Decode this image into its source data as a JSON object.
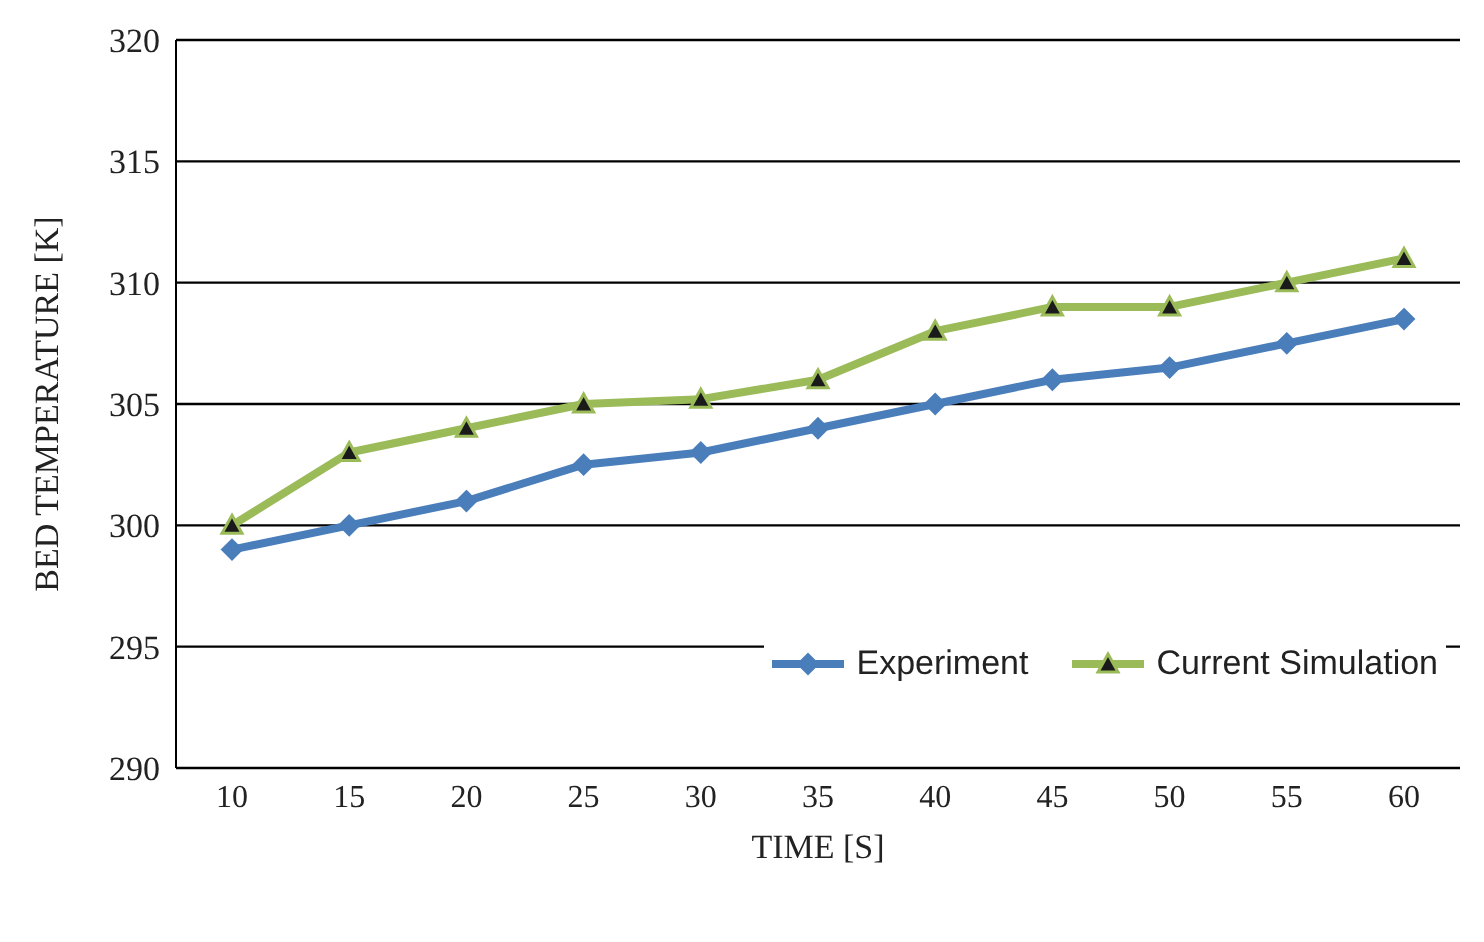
{
  "chart_data": {
    "type": "line",
    "xlabel": "TIME [S]",
    "ylabel": "BED TEMPERATURE [K]",
    "categories": [
      "10",
      "15",
      "20",
      "25",
      "30",
      "35",
      "40",
      "45",
      "50",
      "55",
      "60"
    ],
    "series": [
      {
        "name": "Experiment",
        "color": "#4a7ebb",
        "marker": "diamond",
        "values": [
          299,
          300,
          301,
          302.5,
          303,
          304,
          305,
          306,
          306.5,
          307.5,
          308.5
        ]
      },
      {
        "name": "Current Simulation",
        "color": "#9bbb59",
        "marker": "triangle",
        "values": [
          300,
          303,
          304,
          305,
          305.2,
          306,
          308,
          309,
          309,
          310,
          311
        ]
      }
    ],
    "ylim": [
      290,
      320
    ],
    "yticks": [
      290,
      295,
      300,
      305,
      310,
      315,
      320
    ],
    "grid": "y",
    "legend": "bottom right"
  }
}
